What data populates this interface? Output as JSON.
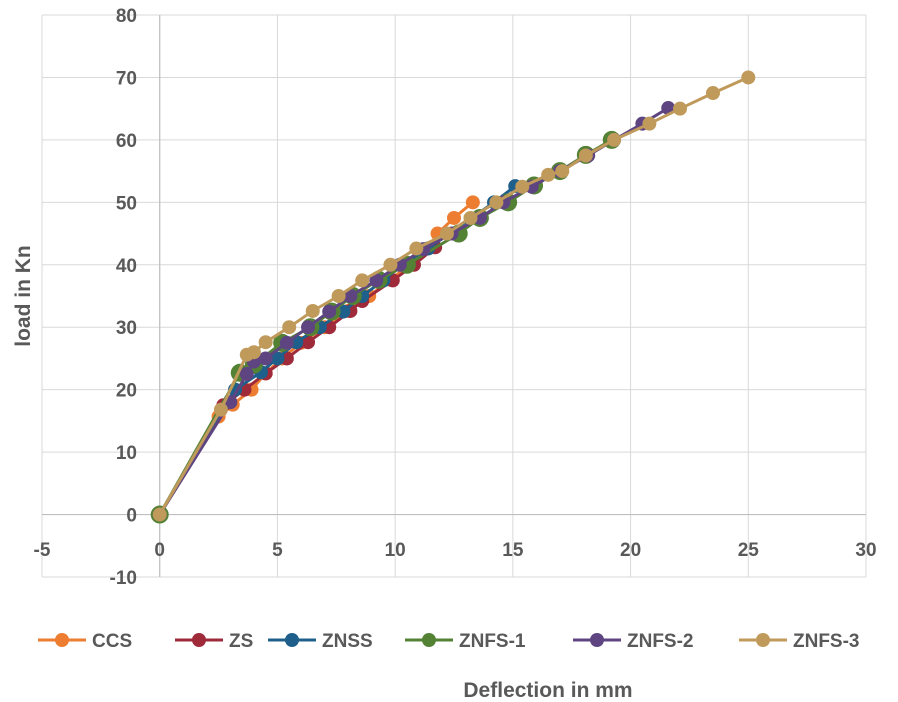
{
  "chart_data": {
    "type": "line",
    "title": "",
    "xlabel": "Deflection in mm",
    "ylabel": "load in Kn",
    "xlim": [
      -5,
      30
    ],
    "ylim": [
      -10,
      80
    ],
    "x_ticks": [
      -5,
      0,
      5,
      10,
      15,
      20,
      25,
      30
    ],
    "y_ticks": [
      -10,
      0,
      10,
      20,
      30,
      40,
      50,
      60,
      70,
      80
    ],
    "grid": true,
    "legend_position": "bottom",
    "series": [
      {
        "name": "CCS",
        "color": "#ED7D31",
        "points": [
          [
            0,
            0
          ],
          [
            2.5,
            15.7
          ],
          [
            3.1,
            17.6
          ],
          [
            3.9,
            20
          ],
          [
            4.5,
            22.6
          ],
          [
            5.2,
            25
          ],
          [
            6,
            27.5
          ],
          [
            7,
            30
          ],
          [
            8,
            32.6
          ],
          [
            8.9,
            35
          ],
          [
            9.8,
            37.6
          ],
          [
            10.6,
            40
          ],
          [
            11.4,
            42.6
          ],
          [
            11.8,
            45
          ],
          [
            12.5,
            47.5
          ],
          [
            13.3,
            50
          ]
        ]
      },
      {
        "name": "ZS",
        "color": "#9E2A3A",
        "points": [
          [
            0,
            0
          ],
          [
            2.7,
            17.5
          ],
          [
            3.6,
            20
          ],
          [
            4.5,
            22.6
          ],
          [
            5.4,
            25
          ],
          [
            6.3,
            27.6
          ],
          [
            7.2,
            30
          ],
          [
            8.1,
            32.6
          ],
          [
            8.6,
            34.2
          ],
          [
            9.9,
            37.5
          ],
          [
            10.8,
            40
          ],
          [
            11.7,
            42.8
          ]
        ]
      },
      {
        "name": "ZNSS",
        "color": "#1F5F8B",
        "points": [
          [
            0,
            0
          ],
          [
            3.2,
            20
          ],
          [
            4.3,
            22.8
          ],
          [
            5,
            25
          ],
          [
            5.8,
            27.6
          ],
          [
            6.8,
            30
          ],
          [
            7.8,
            32.5
          ],
          [
            8.6,
            35
          ],
          [
            9.5,
            37.5
          ],
          [
            10.3,
            40
          ],
          [
            11.4,
            42.6
          ],
          [
            14.2,
            50
          ],
          [
            15.1,
            52.6
          ]
        ]
      },
      {
        "name": "ZNFS-1",
        "color": "#548235",
        "points": [
          [
            0,
            0
          ],
          [
            3.4,
            22.7
          ],
          [
            4,
            24
          ],
          [
            5.2,
            27.5
          ],
          [
            6.4,
            30
          ],
          [
            7.3,
            32.5
          ],
          [
            8.2,
            35
          ],
          [
            9.3,
            37.6
          ],
          [
            10.5,
            40
          ],
          [
            12.7,
            45
          ],
          [
            13.6,
            47.5
          ],
          [
            14.8,
            50
          ],
          [
            15.9,
            52.7
          ],
          [
            17,
            55
          ],
          [
            18.1,
            57.6
          ],
          [
            19.2,
            60
          ]
        ]
      },
      {
        "name": "ZNFS-2",
        "color": "#5E4582",
        "points": [
          [
            0,
            0
          ],
          [
            3,
            18
          ],
          [
            3.7,
            22.5
          ],
          [
            4,
            24.5
          ],
          [
            4.5,
            25
          ],
          [
            5.4,
            27.5
          ],
          [
            6.3,
            30
          ],
          [
            7.2,
            32.5
          ],
          [
            8.1,
            35
          ],
          [
            9.2,
            37.5
          ],
          [
            10.2,
            40
          ],
          [
            11.2,
            42.5
          ],
          [
            12.4,
            45
          ],
          [
            13.6,
            47.5
          ],
          [
            14.6,
            50
          ],
          [
            15.8,
            52.5
          ],
          [
            17,
            55
          ],
          [
            18.2,
            57.5
          ],
          [
            19.3,
            60
          ],
          [
            20.5,
            62.6
          ],
          [
            21.6,
            65.1
          ]
        ]
      },
      {
        "name": "ZNFS-3",
        "color": "#C09A5B",
        "points": [
          [
            0,
            0
          ],
          [
            2.6,
            16.8
          ],
          [
            3.7,
            25.6
          ],
          [
            4,
            26
          ],
          [
            4.5,
            27.6
          ],
          [
            5.5,
            30
          ],
          [
            6.5,
            32.6
          ],
          [
            7.6,
            35
          ],
          [
            8.6,
            37.5
          ],
          [
            9.8,
            40
          ],
          [
            10.9,
            42.6
          ],
          [
            12.2,
            45
          ],
          [
            13.2,
            47.5
          ],
          [
            14.3,
            50
          ],
          [
            15.4,
            52.5
          ],
          [
            16.5,
            54.4
          ],
          [
            17.1,
            55
          ],
          [
            18.1,
            57.5
          ],
          [
            19.3,
            60
          ],
          [
            20.8,
            62.6
          ],
          [
            22.1,
            65
          ],
          [
            23.5,
            67.5
          ],
          [
            25,
            70
          ]
        ]
      }
    ]
  }
}
